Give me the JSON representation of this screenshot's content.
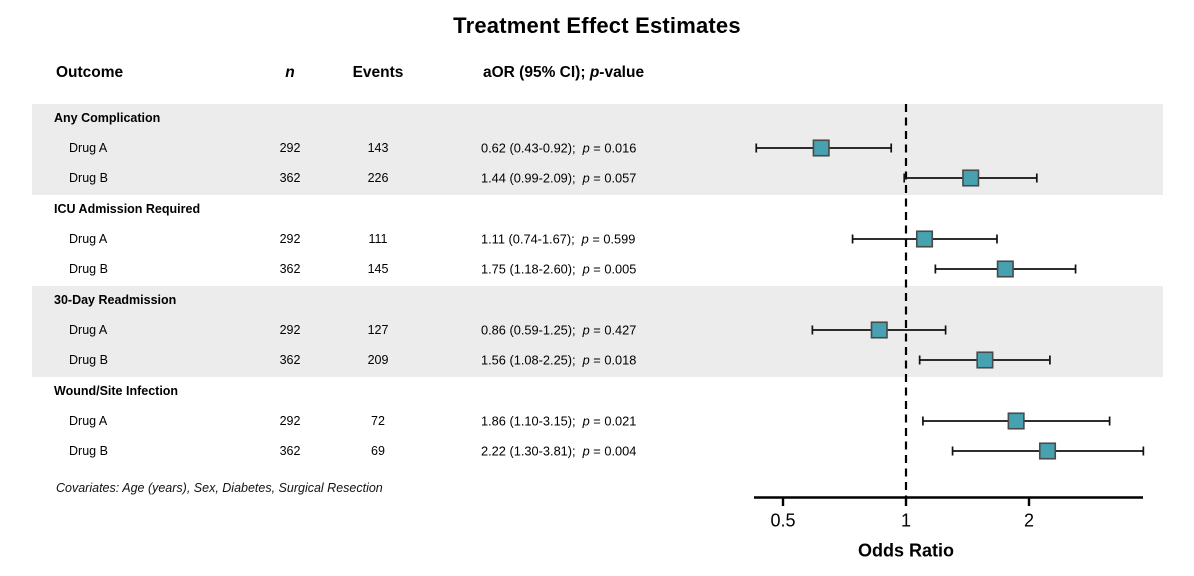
{
  "title": "Treatment Effect Estimates",
  "header": {
    "outcome": "Outcome",
    "n": "n",
    "events": "Events",
    "aor_prefix": "aOR (95% CI); ",
    "aor_p": "p",
    "aor_suffix": "-value"
  },
  "footnote": "Covariates: Age (years), Sex, Diabetes, Surgical Resection",
  "chart_data": {
    "type": "scatter",
    "variant": "forest-plot",
    "title": "Treatment Effect Estimates",
    "xlabel": "Odds Ratio",
    "x_scale": "log",
    "x_ticks": [
      0.5,
      1,
      2
    ],
    "x_range": [
      0.42,
      3.85
    ],
    "reference_line": 1,
    "grid": false,
    "band_color": "#ececec",
    "marker": {
      "shape": "square",
      "fill": "#46a1b1",
      "border": "#4a4a4a"
    },
    "groups": [
      {
        "outcome": "Any Complication",
        "rows": [
          {
            "arm": "Drug A",
            "n": 292,
            "events": 143,
            "or": 0.62,
            "ci_low": 0.43,
            "ci_high": 0.92,
            "estimate_text": "0.62 (0.43-0.92);",
            "p_text": "p = 0.016"
          },
          {
            "arm": "Drug B",
            "n": 362,
            "events": 226,
            "or": 1.44,
            "ci_low": 0.99,
            "ci_high": 2.09,
            "estimate_text": "1.44 (0.99-2.09);",
            "p_text": "p = 0.057"
          }
        ]
      },
      {
        "outcome": "ICU Admission Required",
        "rows": [
          {
            "arm": "Drug A",
            "n": 292,
            "events": 111,
            "or": 1.11,
            "ci_low": 0.74,
            "ci_high": 1.67,
            "estimate_text": "1.11 (0.74-1.67);",
            "p_text": "p = 0.599"
          },
          {
            "arm": "Drug B",
            "n": 362,
            "events": 145,
            "or": 1.75,
            "ci_low": 1.18,
            "ci_high": 2.6,
            "estimate_text": "1.75 (1.18-2.60);",
            "p_text": "p = 0.005"
          }
        ]
      },
      {
        "outcome": "30-Day Readmission",
        "rows": [
          {
            "arm": "Drug A",
            "n": 292,
            "events": 127,
            "or": 0.86,
            "ci_low": 0.59,
            "ci_high": 1.25,
            "estimate_text": "0.86 (0.59-1.25);",
            "p_text": "p = 0.427"
          },
          {
            "arm": "Drug B",
            "n": 362,
            "events": 209,
            "or": 1.56,
            "ci_low": 1.08,
            "ci_high": 2.25,
            "estimate_text": "1.56 (1.08-2.25);",
            "p_text": "p = 0.018"
          }
        ]
      },
      {
        "outcome": "Wound/Site Infection",
        "rows": [
          {
            "arm": "Drug A",
            "n": 292,
            "events": 72,
            "or": 1.86,
            "ci_low": 1.1,
            "ci_high": 3.15,
            "estimate_text": "1.86 (1.10-3.15);",
            "p_text": "p = 0.021"
          },
          {
            "arm": "Drug B",
            "n": 362,
            "events": 69,
            "or": 2.22,
            "ci_low": 1.3,
            "ci_high": 3.81,
            "estimate_text": "2.22 (1.30-3.81);",
            "p_text": "p = 0.004"
          }
        ]
      }
    ]
  }
}
